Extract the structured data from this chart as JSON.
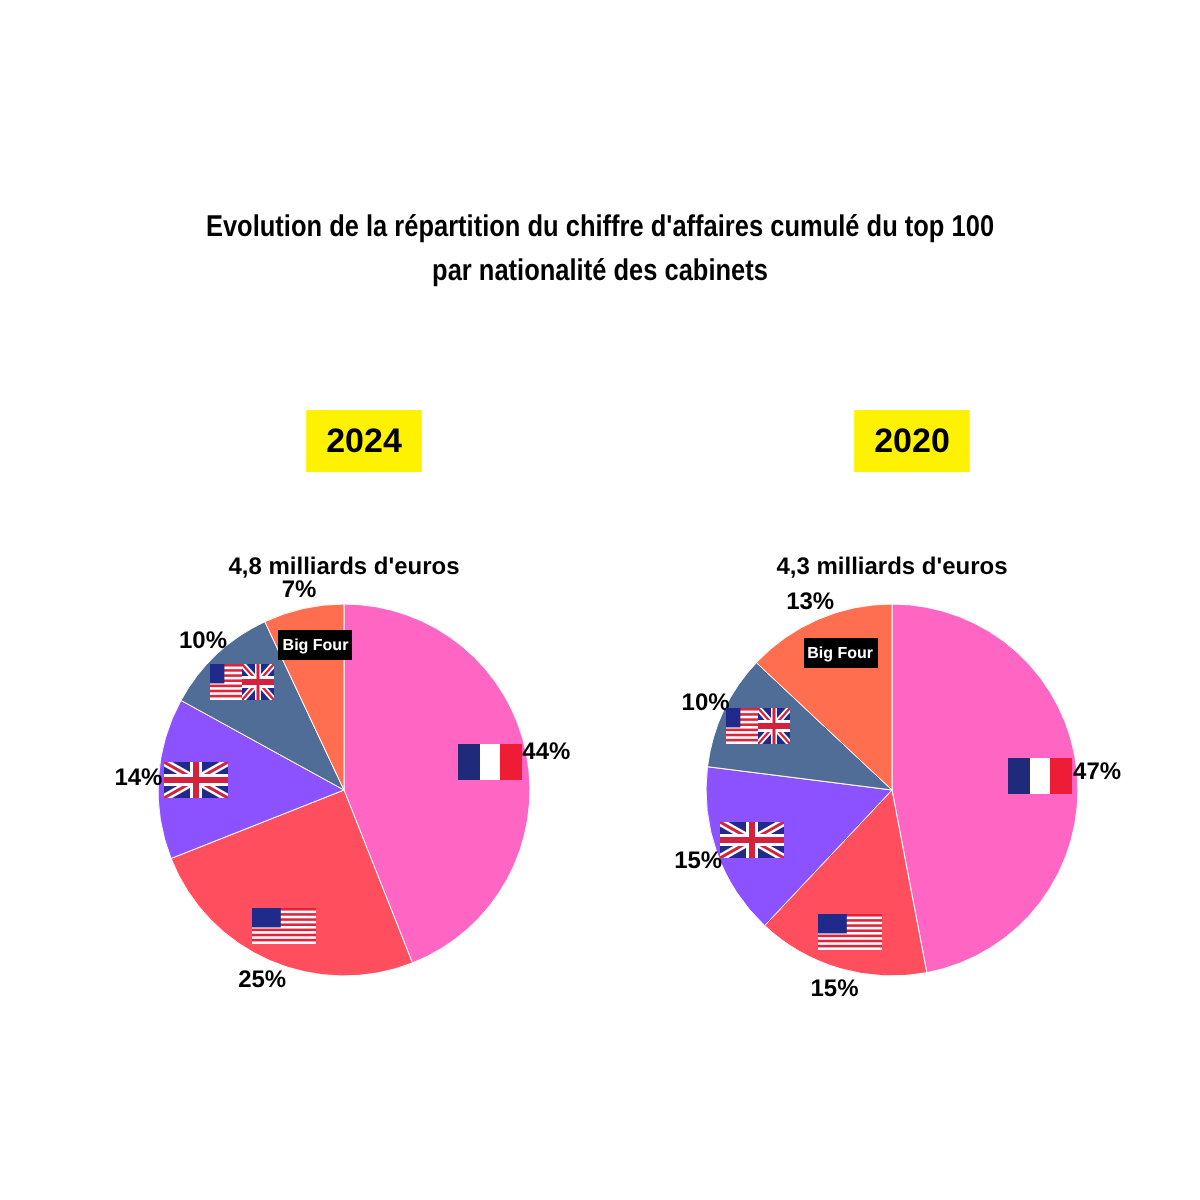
{
  "chart_data": [
    {
      "type": "pie",
      "title": "2024",
      "subtitle": "4,8 milliards d'euros",
      "annotations": [
        "Evolution de la répartition du chiffre d'affaires cumulé du top 100\npar nationalité des cabinets"
      ],
      "categories": [
        null,
        null,
        null,
        null,
        "Big Four"
      ],
      "values": [
        44,
        25,
        14,
        10,
        7
      ],
      "value_labels": [
        "44%",
        "25%",
        "14%",
        "10%",
        "7%"
      ],
      "colors": [
        "#ff66c4",
        "#ff4f5e",
        "#8c52ff",
        "#4f6d96",
        "#ff6f4f"
      ],
      "legend": false
    },
    {
      "type": "pie",
      "title": "2020",
      "subtitle": "4,3 milliards d'euros",
      "categories": [
        null,
        null,
        null,
        null,
        "Big Four"
      ],
      "values": [
        47,
        15,
        15,
        10,
        13
      ],
      "value_labels": [
        "47%",
        "15%",
        "15%",
        "10%",
        "13%"
      ],
      "colors": [
        "#ff66c4",
        "#ff4f5e",
        "#8c52ff",
        "#4f6d96",
        "#ff6f4f"
      ],
      "legend": false
    }
  ]
}
